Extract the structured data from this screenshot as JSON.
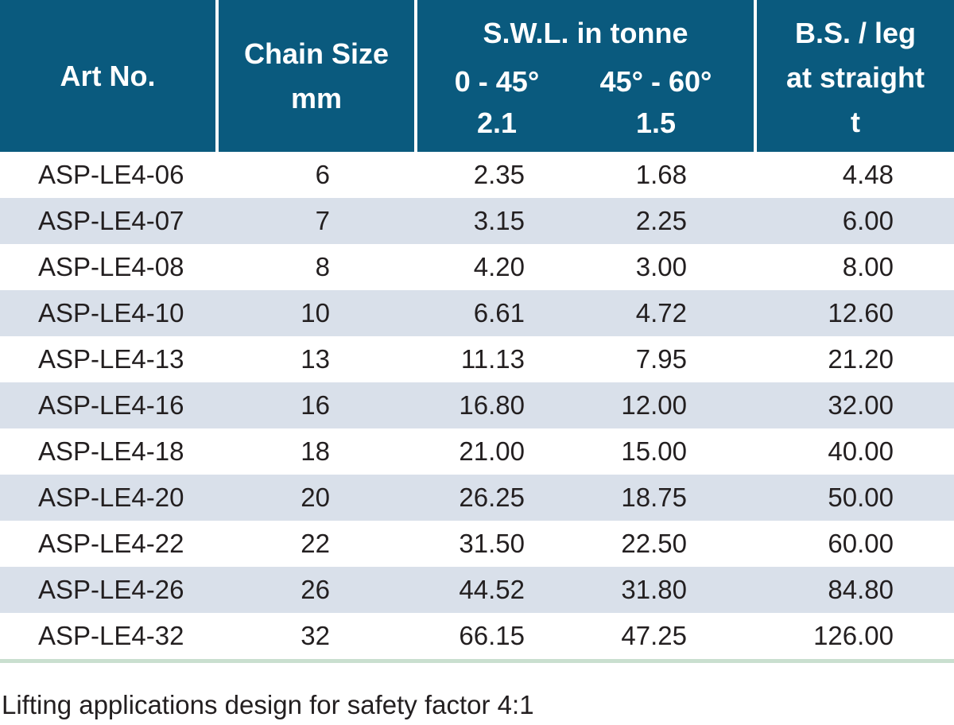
{
  "table": {
    "headers": {
      "art_no": "Art No.",
      "chain_size": [
        "Chain Size",
        "mm"
      ],
      "swl": {
        "title": "S.W.L. in tonne",
        "col1": [
          "0 - 45°",
          "2.1"
        ],
        "col2": [
          "45° - 60°",
          "1.5"
        ]
      },
      "bs": [
        "B.S. / leg",
        "at straight",
        "t"
      ]
    },
    "rows": [
      [
        "ASP-LE4-06",
        "6",
        "2.35",
        "1.68",
        "4.48"
      ],
      [
        "ASP-LE4-07",
        "7",
        "3.15",
        "2.25",
        "6.00"
      ],
      [
        "ASP-LE4-08",
        "8",
        "4.20",
        "3.00",
        "8.00"
      ],
      [
        "ASP-LE4-10",
        "10",
        "6.61",
        "4.72",
        "12.60"
      ],
      [
        "ASP-LE4-13",
        "13",
        "11.13",
        "7.95",
        "21.20"
      ],
      [
        "ASP-LE4-16",
        "16",
        "16.80",
        "12.00",
        "32.00"
      ],
      [
        "ASP-LE4-18",
        "18",
        "21.00",
        "15.00",
        "40.00"
      ],
      [
        "ASP-LE4-20",
        "20",
        "26.25",
        "18.75",
        "50.00"
      ],
      [
        "ASP-LE4-22",
        "22",
        "31.50",
        "22.50",
        "60.00"
      ],
      [
        "ASP-LE4-26",
        "26",
        "44.52",
        "31.80",
        "84.80"
      ],
      [
        "ASP-LE4-32",
        "32",
        "66.15",
        "47.25",
        "126.00"
      ]
    ]
  },
  "footnote": "Lifting applications design for safety factor 4:1",
  "colors": {
    "header_bg": "#0a5a7e",
    "header_text": "#ffffff",
    "stripe": "#d9e0ea",
    "rule": "#c9dfcf"
  }
}
